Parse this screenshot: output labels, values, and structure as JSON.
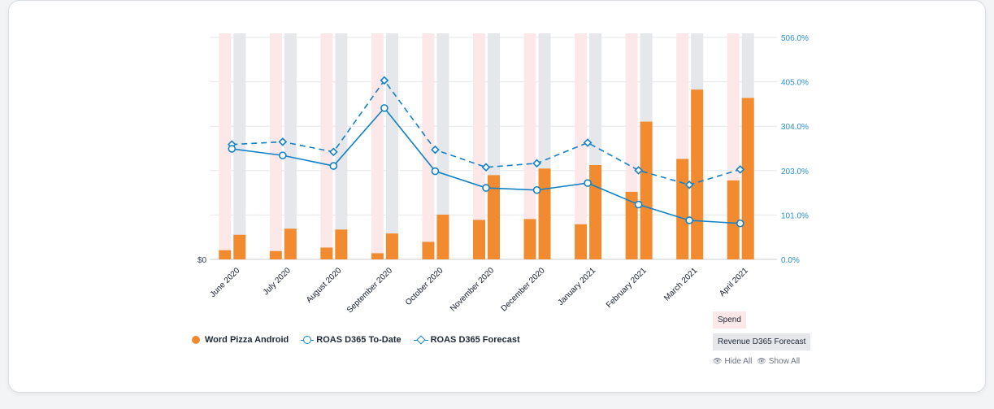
{
  "chart_data": {
    "type": "bar",
    "categories": [
      "June 2020",
      "July 2020",
      "August 2020",
      "September 2020",
      "October 2020",
      "November 2020",
      "December 2020",
      "January 2021",
      "February 2021",
      "March 2021",
      "April 2021"
    ],
    "y_left": {
      "ticks": [
        "$0"
      ]
    },
    "y_right": {
      "ticks": [
        "0.0%",
        "101.0%",
        "203.0%",
        "304.0%",
        "405.0%",
        "506.0%"
      ],
      "range": [
        0,
        506
      ]
    },
    "bar_scale_max": 506,
    "series": [
      {
        "name": "Word Pizza Android",
        "type": "bar",
        "color": "#f28b30",
        "spend": [
          21,
          19,
          27,
          14,
          40,
          90,
          92,
          80,
          154,
          229,
          180
        ],
        "revenue": [
          56,
          70,
          68,
          59,
          102,
          192,
          207,
          215,
          314,
          387,
          368
        ]
      },
      {
        "name": "ROAS D365 To-Date",
        "type": "line",
        "color": "#1282c8",
        "values": [
          252,
          237,
          213,
          345,
          201,
          163,
          158,
          174,
          125,
          89,
          82
        ]
      },
      {
        "name": "ROAS D365 Forecast",
        "type": "line",
        "dashed": true,
        "color": "#1282c8",
        "values": [
          262,
          268,
          245,
          408,
          250,
          210,
          219,
          266,
          203,
          170,
          205
        ]
      }
    ],
    "background_legend": {
      "spend_label": "Spend",
      "revenue_label": "Revenue D365 Forecast",
      "spend_color": "#fde8e9",
      "revenue_color": "#e5e7eb"
    },
    "toggles": {
      "hide_all": "Hide All",
      "show_all": "Show All"
    },
    "grid": true
  }
}
